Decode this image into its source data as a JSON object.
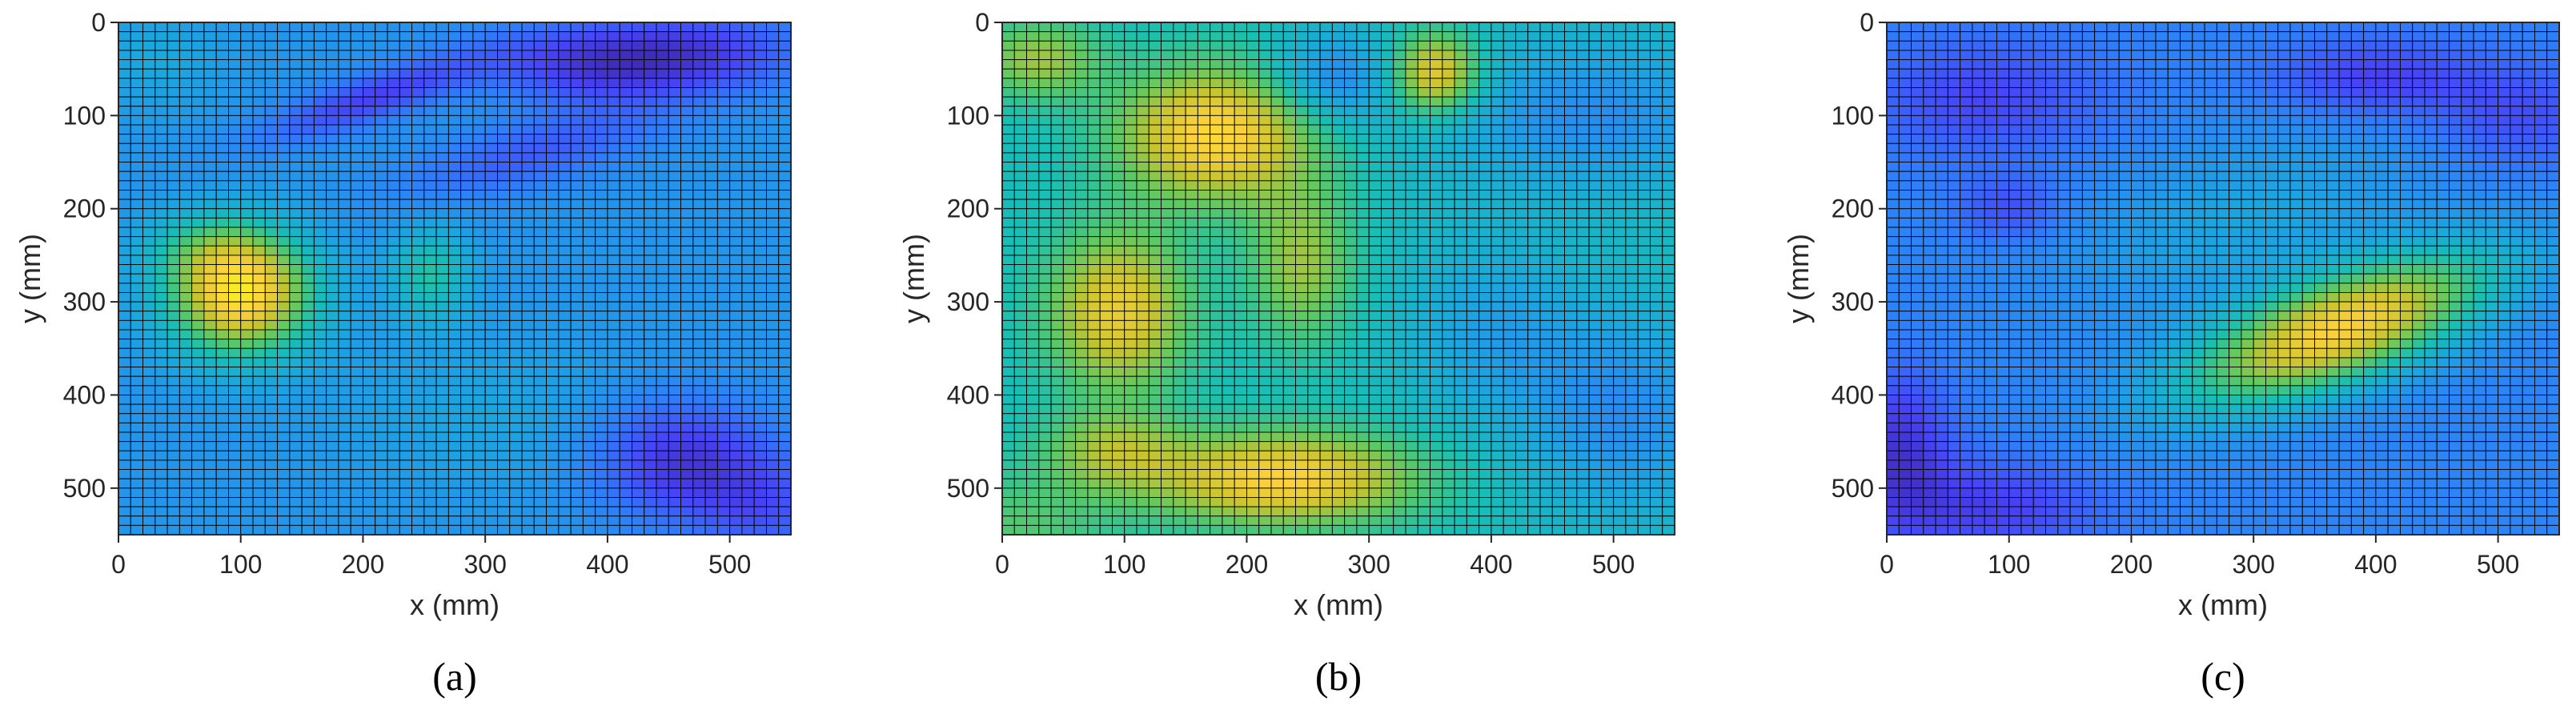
{
  "figure": {
    "colors": {
      "colormap": "parula",
      "stops": [
        "#3e26a8",
        "#4743f8",
        "#2f7dfb",
        "#1aa7de",
        "#17bfb4",
        "#5ec962",
        "#c6c42d",
        "#fbd13a",
        "#f9fb15"
      ],
      "mesh_edge": "#000000",
      "axis": "#262626"
    }
  },
  "chart_data": [
    {
      "type": "heatmap",
      "title": "",
      "caption": "(a)",
      "xlabel": "x (mm)",
      "ylabel": "y (mm)",
      "xlim": [
        0,
        550
      ],
      "ylim": [
        0,
        550
      ],
      "y_direction": "reversed",
      "grid_cells": 55,
      "xticks": [
        "0",
        "100",
        "200",
        "300",
        "400",
        "500"
      ],
      "yticks": [
        "0",
        "100",
        "200",
        "300",
        "400",
        "500"
      ],
      "value_range": [
        0,
        1
      ],
      "baseline": 0.32,
      "features": [
        {
          "x": 100,
          "y": 290,
          "sx": 40,
          "sy": 45,
          "value": 0.62,
          "angle": 0
        },
        {
          "x": 70,
          "y": 240,
          "sx": 35,
          "sy": 25,
          "value": 0.12,
          "angle": 0
        },
        {
          "x": 255,
          "y": 270,
          "sx": 22,
          "sy": 35,
          "value": 0.2,
          "angle": 0
        },
        {
          "x": 210,
          "y": 80,
          "sx": 70,
          "sy": 18,
          "value": -0.2,
          "angle": -25
        },
        {
          "x": 390,
          "y": 45,
          "sx": 60,
          "sy": 30,
          "value": -0.22,
          "angle": 0
        },
        {
          "x": 480,
          "y": 30,
          "sx": 60,
          "sy": 30,
          "value": -0.18,
          "angle": 0
        },
        {
          "x": 340,
          "y": 140,
          "sx": 80,
          "sy": 25,
          "value": -0.14,
          "angle": -20
        },
        {
          "x": 460,
          "y": 470,
          "sx": 50,
          "sy": 45,
          "value": -0.24,
          "angle": 0
        },
        {
          "x": 530,
          "y": 520,
          "sx": 40,
          "sy": 40,
          "value": -0.14,
          "angle": 0
        },
        {
          "x": 30,
          "y": 40,
          "sx": 40,
          "sy": 40,
          "value": 0.06,
          "angle": 0
        },
        {
          "x": 300,
          "y": 420,
          "sx": 90,
          "sy": 60,
          "value": 0.05,
          "angle": 0
        }
      ]
    },
    {
      "type": "heatmap",
      "title": "",
      "caption": "(b)",
      "xlabel": "x (mm)",
      "ylabel": "y (mm)",
      "xlim": [
        0,
        550
      ],
      "ylim": [
        0,
        550
      ],
      "y_direction": "reversed",
      "grid_cells": 55,
      "xticks": [
        "0",
        "100",
        "200",
        "300",
        "400",
        "500"
      ],
      "yticks": [
        "0",
        "100",
        "200",
        "300",
        "400",
        "500"
      ],
      "value_range": [
        0,
        1
      ],
      "baseline": 0.48,
      "features": [
        {
          "x": 175,
          "y": 120,
          "sx": 55,
          "sy": 50,
          "value": 0.42,
          "angle": 0
        },
        {
          "x": 95,
          "y": 310,
          "sx": 40,
          "sy": 60,
          "value": 0.35,
          "angle": 0
        },
        {
          "x": 230,
          "y": 490,
          "sx": 75,
          "sy": 35,
          "value": 0.4,
          "angle": 0
        },
        {
          "x": 245,
          "y": 260,
          "sx": 30,
          "sy": 60,
          "value": 0.22,
          "angle": 0
        },
        {
          "x": 355,
          "y": 55,
          "sx": 25,
          "sy": 30,
          "value": 0.38,
          "angle": 0
        },
        {
          "x": 30,
          "y": 40,
          "sx": 35,
          "sy": 30,
          "value": 0.22,
          "angle": 0
        },
        {
          "x": 90,
          "y": 460,
          "sx": 40,
          "sy": 30,
          "value": 0.2,
          "angle": 0
        },
        {
          "x": 270,
          "y": 60,
          "sx": 35,
          "sy": 35,
          "value": -0.2,
          "angle": 0
        },
        {
          "x": 480,
          "y": 100,
          "sx": 90,
          "sy": 60,
          "value": -0.18,
          "angle": 0
        },
        {
          "x": 510,
          "y": 420,
          "sx": 60,
          "sy": 80,
          "value": -0.18,
          "angle": 0
        },
        {
          "x": 400,
          "y": 330,
          "sx": 50,
          "sy": 70,
          "value": -0.12,
          "angle": 0
        },
        {
          "x": 10,
          "y": 540,
          "sx": 60,
          "sy": 40,
          "value": 0.12,
          "angle": 0
        }
      ]
    },
    {
      "type": "heatmap",
      "title": "",
      "caption": "(c)",
      "xlabel": "x (mm)",
      "ylabel": "y (mm)",
      "xlim": [
        0,
        550
      ],
      "ylim": [
        0,
        550
      ],
      "y_direction": "reversed",
      "grid_cells": 55,
      "xticks": [
        "0",
        "100",
        "200",
        "300",
        "400",
        "500"
      ],
      "yticks": [
        "0",
        "100",
        "200",
        "300",
        "400",
        "500"
      ],
      "value_range": [
        0,
        1
      ],
      "baseline": 0.27,
      "features": [
        {
          "x": 370,
          "y": 330,
          "sx": 95,
          "sy": 38,
          "value": 0.6,
          "angle": -28
        },
        {
          "x": 290,
          "y": 210,
          "sx": 110,
          "sy": 60,
          "value": 0.1,
          "angle": -25
        },
        {
          "x": 80,
          "y": 80,
          "sx": 70,
          "sy": 45,
          "value": -0.14,
          "angle": 0
        },
        {
          "x": 400,
          "y": 60,
          "sx": 60,
          "sy": 30,
          "value": -0.16,
          "angle": 0
        },
        {
          "x": 520,
          "y": 100,
          "sx": 50,
          "sy": 40,
          "value": -0.12,
          "angle": 0
        },
        {
          "x": 10,
          "y": 460,
          "sx": 30,
          "sy": 60,
          "value": -0.2,
          "angle": 0
        },
        {
          "x": 90,
          "y": 520,
          "sx": 60,
          "sy": 35,
          "value": -0.16,
          "angle": 0
        },
        {
          "x": 100,
          "y": 200,
          "sx": 30,
          "sy": 25,
          "value": -0.12,
          "angle": 0
        }
      ]
    }
  ]
}
